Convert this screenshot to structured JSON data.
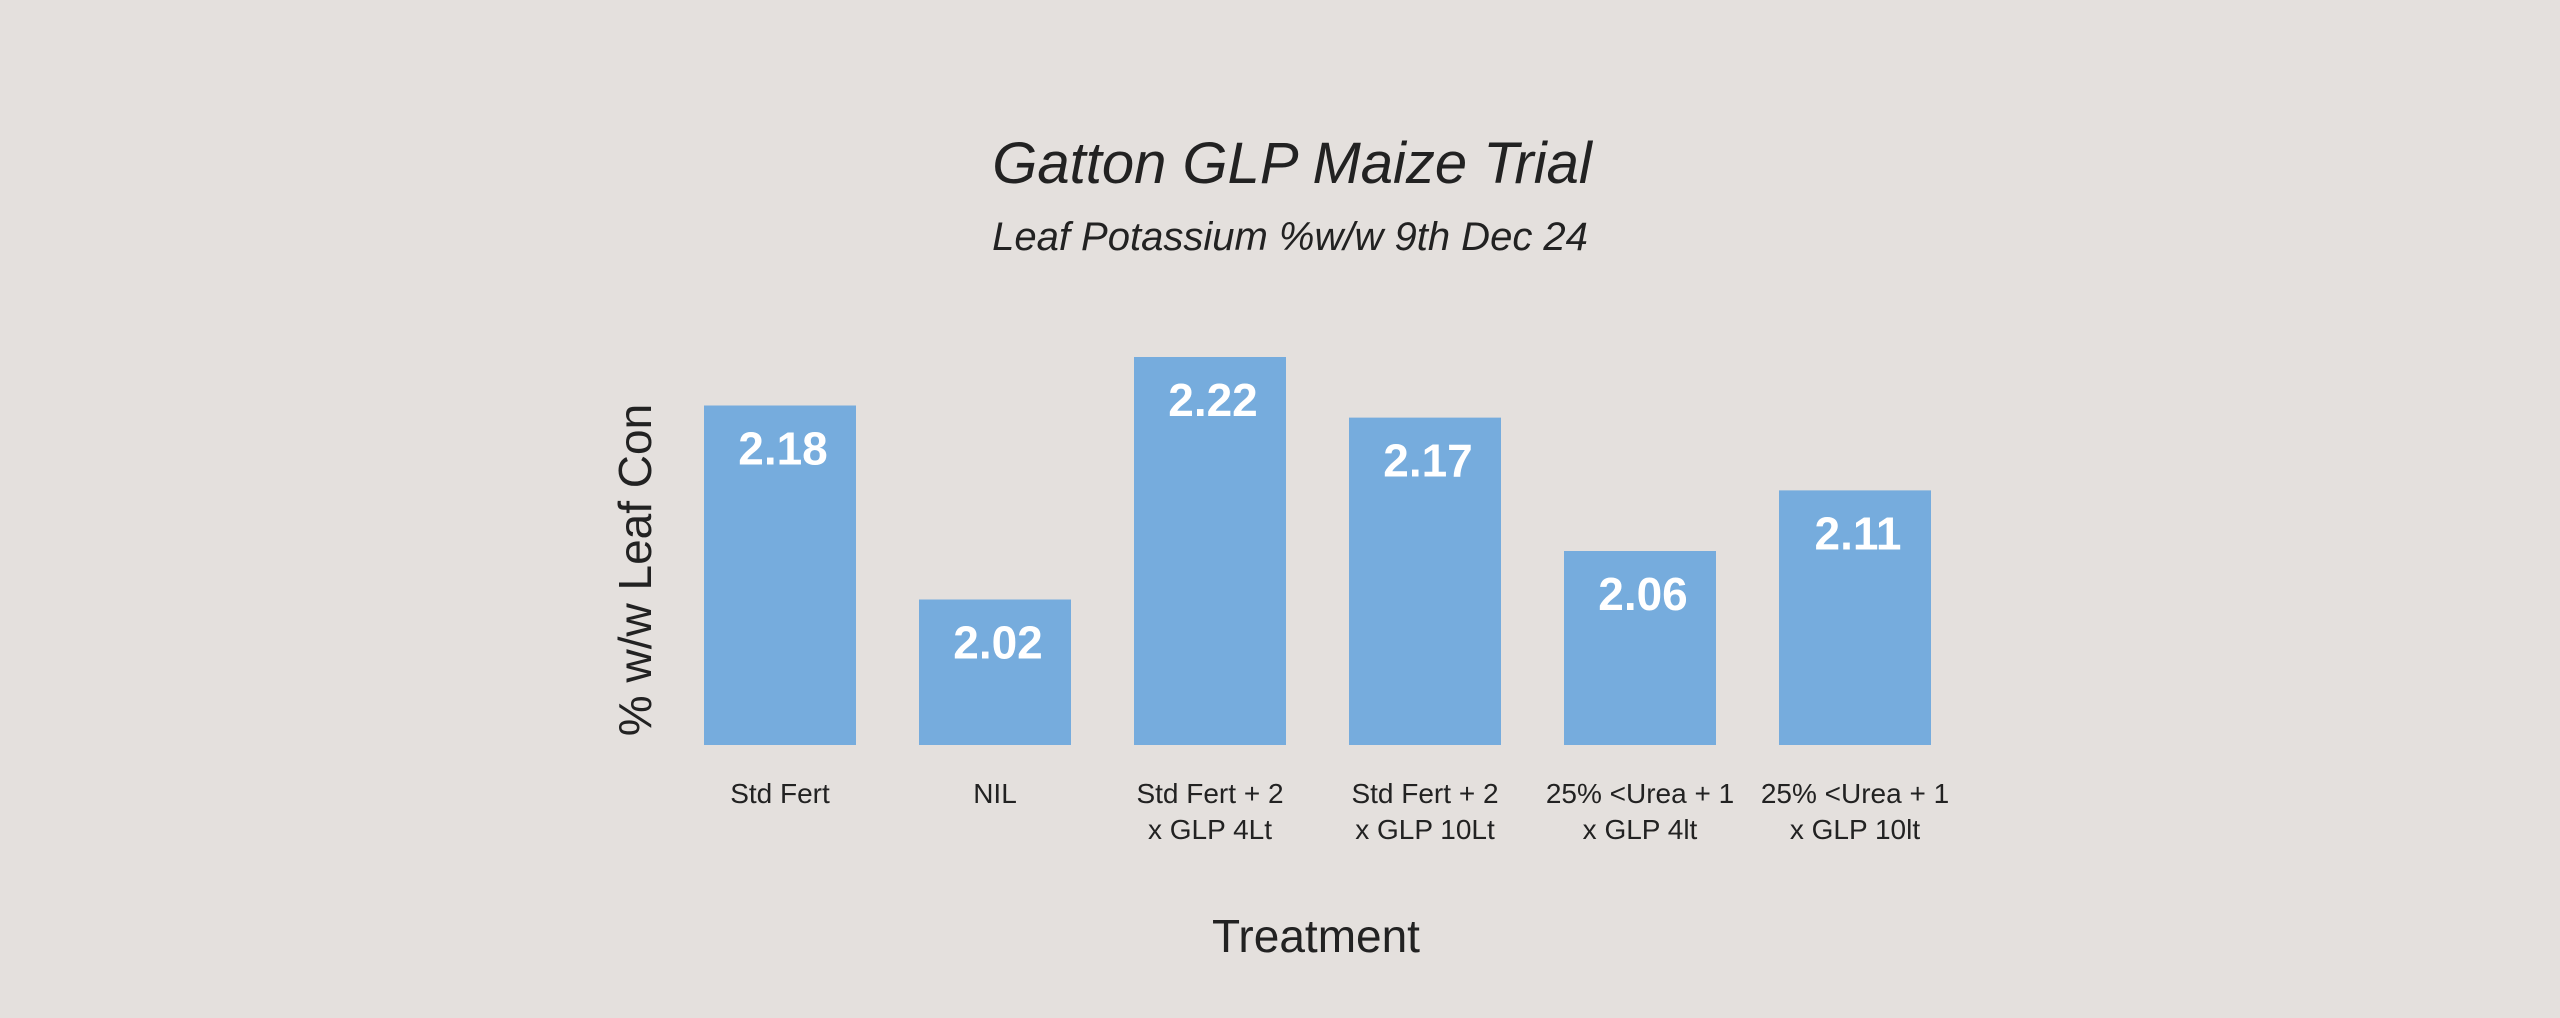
{
  "chart_data": {
    "type": "bar",
    "title": "Gatton GLP Maize Trial",
    "subtitle": "Leaf Potassium %w/w 9th Dec 24",
    "xlabel": "Treatment",
    "ylabel": "% w/w Leaf Con",
    "categories": [
      [
        "Std Fert"
      ],
      [
        "NIL"
      ],
      [
        "Std Fert + 2",
        "x GLP 4Lt"
      ],
      [
        "Std Fert + 2",
        "x GLP 10Lt"
      ],
      [
        "25% <Urea + 1",
        "x GLP 4lt"
      ],
      [
        "25% <Urea + 1",
        "x GLP 10lt"
      ]
    ],
    "values": [
      2.18,
      2.02,
      2.22,
      2.17,
      2.06,
      2.11
    ],
    "data_labels": [
      "2.18",
      "2.02",
      "2.22",
      "2.17",
      "2.06",
      "2.11"
    ],
    "ylim": [
      1.9,
      2.22
    ],
    "grid": false,
    "legend": false,
    "colors": {
      "bar": "#76acdd",
      "data_label": "#ffffff",
      "text": "#222222",
      "background": "#e4e0dd"
    }
  }
}
